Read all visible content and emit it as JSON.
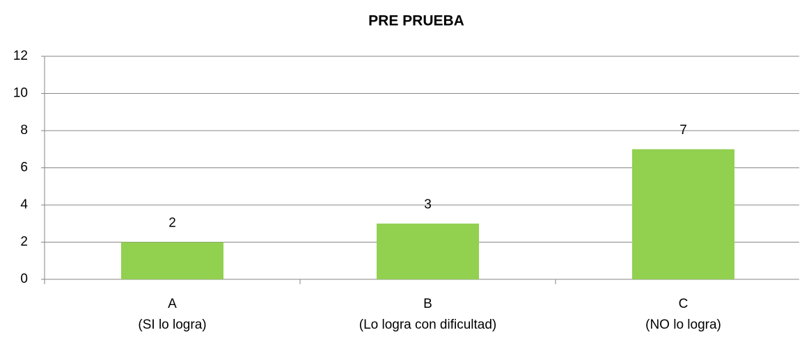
{
  "chart_data": {
    "type": "bar",
    "title": "PRE PRUEBA",
    "categories": [
      [
        "A",
        "(SI lo logra)"
      ],
      [
        "B",
        "(Lo logra con dificultad)"
      ],
      [
        "C",
        "(NO lo logra)"
      ]
    ],
    "values": [
      2,
      3,
      7
    ],
    "color": "#92d050",
    "ylim": [
      0,
      12
    ],
    "yticks": [
      0,
      2,
      4,
      6,
      8,
      10,
      12
    ],
    "grid": true
  }
}
